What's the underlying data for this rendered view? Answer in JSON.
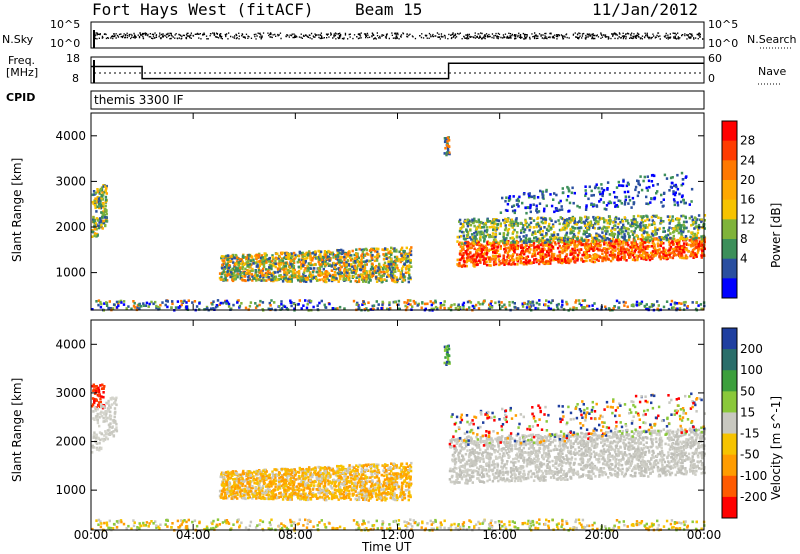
{
  "header": {
    "radar": "Fort Hays West (fitACF)",
    "beam": "Beam 15",
    "date": "11/Jan/2012"
  },
  "panels": {
    "nsky_label": "N.Sky",
    "nsky_ticks": [
      "10^5",
      "10^0"
    ],
    "nsearch_label": "N.Search",
    "nsearch_ticks": [
      "10^5",
      "10^0"
    ],
    "freq_label_1": "Freq.",
    "freq_label_2": "[MHz]",
    "freq_ticks": [
      "18",
      "8"
    ],
    "nave_label": "Nave",
    "nave_ticks": [
      "60",
      "0"
    ],
    "cpid_label": "CPID",
    "cpid_value": "themis 3300 IF"
  },
  "chart_data": [
    {
      "type": "heatmap",
      "title": "",
      "ylabel": "Slant Range [km]",
      "xlabel": "",
      "x_range": [
        "00:00",
        "00:00"
      ],
      "ylim": [
        180,
        4500
      ],
      "y_ticks": [
        "4000",
        "3000",
        "2000",
        "1000"
      ],
      "colorbar": {
        "label": "Power [dB]",
        "ticks": [
          "28",
          "24",
          "20",
          "16",
          "12",
          "8",
          "4"
        ],
        "colors": [
          "#ff0000",
          "#ff3b00",
          "#ff7800",
          "#ffa800",
          "#f6c300",
          "#7fb33a",
          "#3c8f5a",
          "#2a4fa0",
          "#0000ff"
        ]
      },
      "regions": [
        {
          "t0": 0.0,
          "t1": 0.6,
          "r0": 1700,
          "r1": 3000,
          "level": "mixed"
        },
        {
          "t0": 5.0,
          "t1": 12.5,
          "r0": 800,
          "r1": 1700,
          "level": "mid"
        },
        {
          "t0": 14.0,
          "t1": 24.0,
          "r0": 1100,
          "r1": 2300,
          "level": "high"
        },
        {
          "t0": 13.8,
          "t1": 14.0,
          "r0": 3600,
          "r1": 4000,
          "level": "mixed"
        }
      ]
    },
    {
      "type": "heatmap",
      "title": "",
      "ylabel": "Slant Range [km]",
      "xlabel": "Time UT",
      "x_ticks": [
        "00:00",
        "04:00",
        "08:00",
        "12:00",
        "16:00",
        "20:00",
        "00:00"
      ],
      "ylim": [
        180,
        4500
      ],
      "y_ticks": [
        "4000",
        "3000",
        "2000",
        "1000"
      ],
      "colorbar": {
        "label": "Velocity [m s^-1]",
        "ticks": [
          "200",
          "100",
          "50",
          "15",
          "-15",
          "-50",
          "-100",
          "-200"
        ],
        "colors": [
          "#1f3fa0",
          "#2a6e6a",
          "#3c9f3c",
          "#8ac83a",
          "#c8c8c0",
          "#f6c300",
          "#ff9c00",
          "#ff5a00",
          "#ff0000"
        ]
      },
      "regions": [
        {
          "t0": 0.0,
          "t1": 0.5,
          "r0": 2700,
          "r1": 3200,
          "level": "negative-strong"
        },
        {
          "t0": 5.0,
          "t1": 12.5,
          "r0": 800,
          "r1": 1700,
          "level": "negative"
        },
        {
          "t0": 14.0,
          "t1": 24.0,
          "r0": 1100,
          "r1": 2300,
          "level": "ground-scatter"
        }
      ]
    }
  ]
}
